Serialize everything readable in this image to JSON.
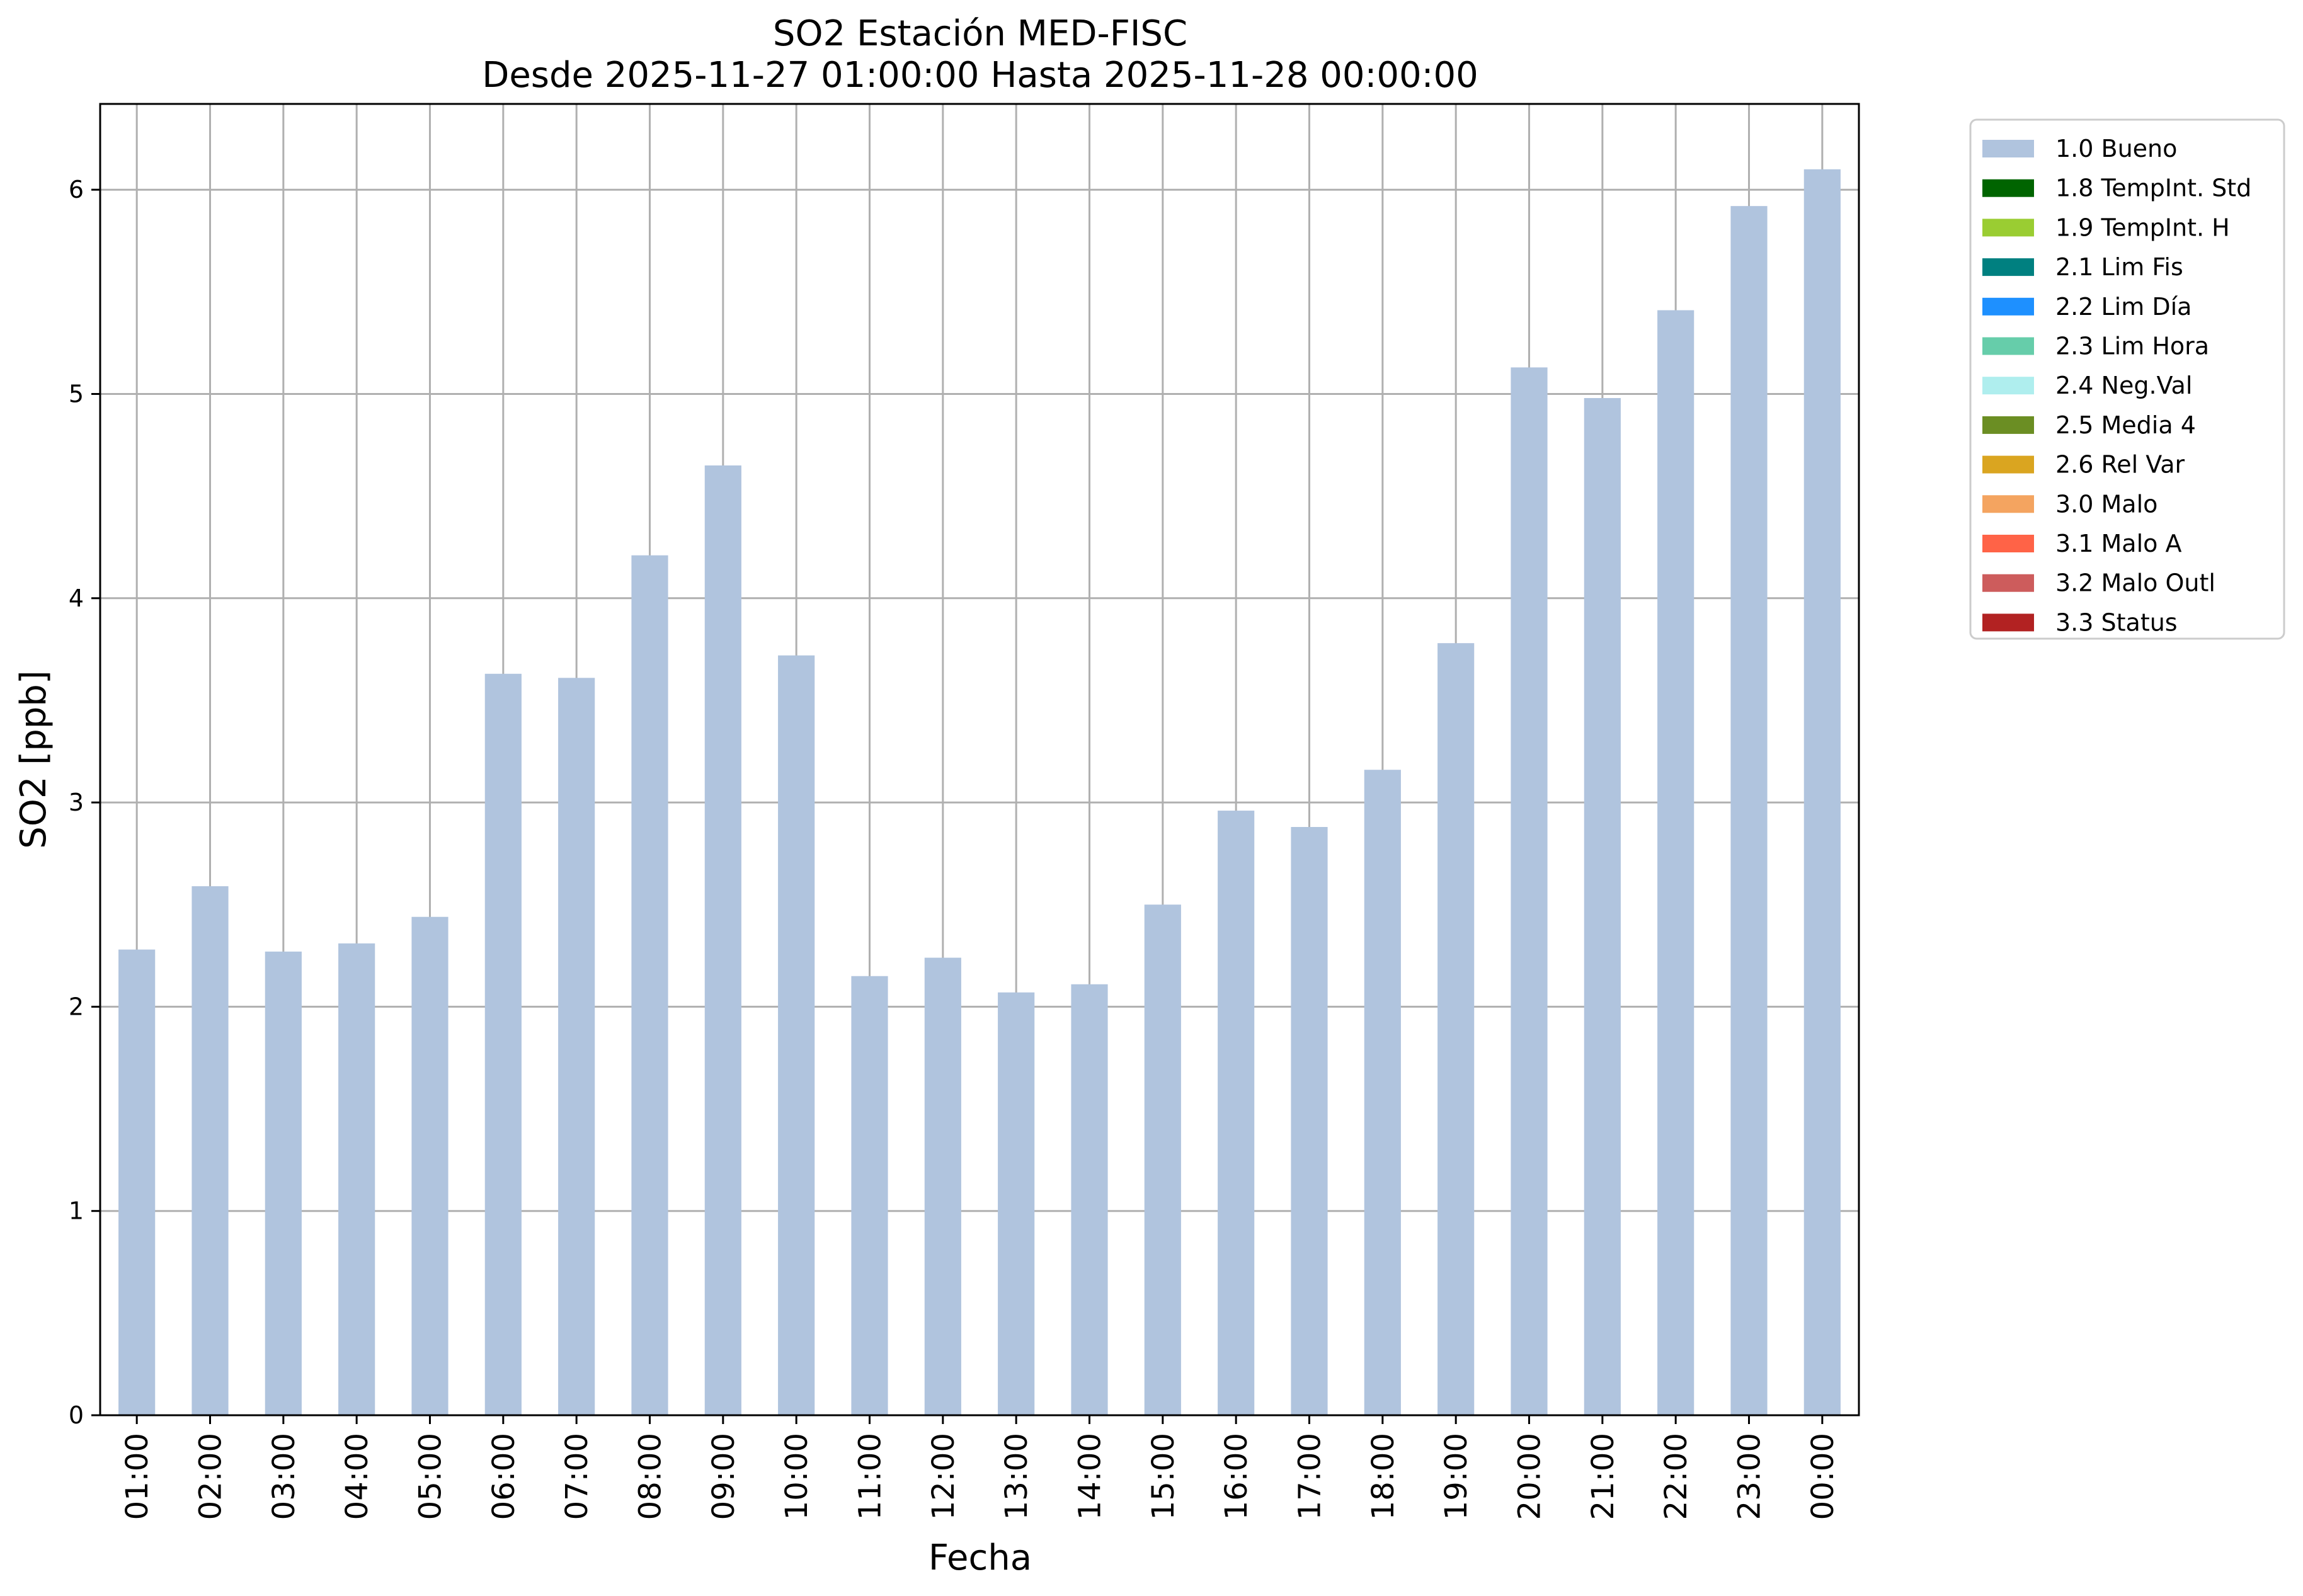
{
  "chart_data": {
    "type": "bar",
    "title": "SO2 Estación MED-FISC",
    "subtitle": "Desde 2025-11-27 01:00:00 Hasta 2025-11-28 00:00:00",
    "xlabel": "Fecha",
    "ylabel": "SO2 [ppb]",
    "ylim": [
      0,
      6.42
    ],
    "yticks": [
      "0",
      "1",
      "2",
      "3",
      "4",
      "5",
      "6"
    ],
    "grid": true,
    "legend_position": "outside-top-right",
    "categories": [
      "01:00",
      "02:00",
      "03:00",
      "04:00",
      "05:00",
      "06:00",
      "07:00",
      "08:00",
      "09:00",
      "10:00",
      "11:00",
      "12:00",
      "13:00",
      "14:00",
      "15:00",
      "16:00",
      "17:00",
      "18:00",
      "19:00",
      "20:00",
      "21:00",
      "22:00",
      "23:00",
      "00:00"
    ],
    "series": [
      {
        "name": "1.0 Bueno",
        "color": "#b0c4de",
        "values": [
          2.28,
          2.59,
          2.27,
          2.31,
          2.44,
          3.63,
          3.61,
          4.21,
          4.65,
          3.72,
          2.15,
          2.24,
          2.07,
          2.11,
          2.5,
          2.96,
          2.88,
          3.16,
          3.78,
          5.13,
          4.98,
          5.41,
          5.92,
          6.1
        ]
      }
    ],
    "legend": [
      {
        "label": "1.0 Bueno",
        "color": "#b0c4de"
      },
      {
        "label": "1.8 TempInt. Std",
        "color": "#006400"
      },
      {
        "label": "1.9 TempInt. H",
        "color": "#9acd32"
      },
      {
        "label": "2.1 Lim Fis",
        "color": "#008080"
      },
      {
        "label": "2.2 Lim Día",
        "color": "#1e90ff"
      },
      {
        "label": "2.3 Lim Hora",
        "color": "#66cdaa"
      },
      {
        "label": "2.4 Neg.Val",
        "color": "#afeeee"
      },
      {
        "label": "2.5 Media 4",
        "color": "#6b8e23"
      },
      {
        "label": "2.6 Rel Var",
        "color": "#daa520"
      },
      {
        "label": "3.0 Malo",
        "color": "#f4a460"
      },
      {
        "label": "3.1 Malo A",
        "color": "#ff6347"
      },
      {
        "label": "3.2 Malo Outl",
        "color": "#cd5c5c"
      },
      {
        "label": "3.3 Status",
        "color": "#b22222"
      }
    ]
  }
}
